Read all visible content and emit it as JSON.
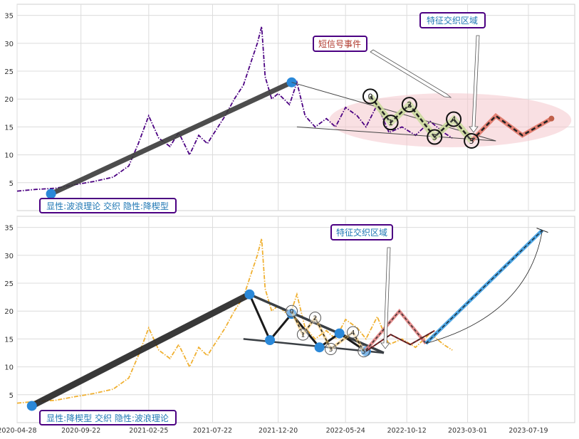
{
  "chart_data": [
    {
      "type": "line",
      "ylim": [
        0,
        37
      ],
      "yticks": [
        5,
        10,
        15,
        20,
        25,
        30,
        35
      ],
      "grid": true,
      "series": [
        {
          "role": "price",
          "color": "#4b0082",
          "dash": "dash-dot",
          "points": [
            [
              "2020-04-28",
              3.5
            ],
            [
              "2020-06-10",
              3.8
            ],
            [
              "2020-07-25",
              4.0
            ],
            [
              "2020-09-05",
              4.6
            ],
            [
              "2020-10-20",
              5.2
            ],
            [
              "2020-12-05",
              6.0
            ],
            [
              "2021-01-10",
              8.0
            ],
            [
              "2021-02-01",
              12.0
            ],
            [
              "2021-02-25",
              17.0
            ],
            [
              "2021-03-20",
              13.0
            ],
            [
              "2021-04-15",
              11.5
            ],
            [
              "2021-05-05",
              14.0
            ],
            [
              "2021-05-30",
              10.0
            ],
            [
              "2021-06-20",
              13.5
            ],
            [
              "2021-07-10",
              12.0
            ],
            [
              "2021-07-22",
              13.5
            ],
            [
              "2021-08-20",
              17.0
            ],
            [
              "2021-09-10",
              20.0
            ],
            [
              "2021-10-01",
              22.5
            ],
            [
              "2021-10-20",
              27.0
            ],
            [
              "2021-11-02",
              30.0
            ],
            [
              "2021-11-12",
              33.0
            ],
            [
              "2021-11-20",
              24.0
            ],
            [
              "2021-12-05",
              20.0
            ],
            [
              "2021-12-20",
              21.0
            ],
            [
              "2022-01-15",
              19.0
            ],
            [
              "2022-02-01",
              23.0
            ],
            [
              "2022-02-20",
              17.0
            ],
            [
              "2022-03-15",
              15.0
            ],
            [
              "2022-04-10",
              16.5
            ],
            [
              "2022-05-01",
              15.0
            ],
            [
              "2022-05-24",
              18.5
            ],
            [
              "2022-06-20",
              17.0
            ],
            [
              "2022-07-10",
              15.0
            ],
            [
              "2022-08-05",
              19.0
            ],
            [
              "2022-09-01",
              14.0
            ],
            [
              "2022-10-01",
              15.0
            ],
            [
              "2022-11-01",
              13.5
            ],
            [
              "2022-12-05",
              16.0
            ],
            [
              "2023-01-05",
              14.0
            ],
            [
              "2023-01-25",
              13.0
            ]
          ]
        }
      ],
      "waves": {
        "trend_start": [
          "2020-07-15",
          3.0
        ],
        "trend_peak": [
          "2022-01-20",
          23.0
        ],
        "numbered": [
          {
            "label": "0",
            "x": "2022-07-20",
            "y": 20.5
          },
          {
            "label": "1",
            "x": "2022-09-05",
            "y": 15.8
          },
          {
            "label": "2",
            "x": "2022-10-18",
            "y": 19.0
          },
          {
            "label": "3",
            "x": "2022-12-15",
            "y": 13.2
          },
          {
            "label": "4",
            "x": "2023-01-28",
            "y": 16.4
          },
          {
            "label": "5",
            "x": "2023-03-10",
            "y": 12.5
          }
        ],
        "projection": [
          [
            "2023-03-10",
            12.5
          ],
          [
            "2023-05-05",
            17.0
          ],
          [
            "2023-07-05",
            13.5
          ],
          [
            "2023-09-10",
            16.5
          ]
        ]
      },
      "annotations": [
        {
          "text": "短信号事件",
          "color": "#b03a2e"
        },
        {
          "text": "特征交织区域",
          "color": "#1f77b4"
        },
        {
          "text": "显性:波浪理论 交织 隐性:降楔型",
          "color": "#1f77b4"
        }
      ]
    },
    {
      "type": "line",
      "ylim": [
        0,
        37
      ],
      "yticks": [
        5,
        10,
        15,
        20,
        25,
        30,
        35
      ],
      "xticks": [
        "2020-04-28",
        "2020-09-22",
        "2021-02-25",
        "2021-07-22",
        "2021-12-20",
        "2022-05-24",
        "2022-10-12",
        "2023-03-01",
        "2023-07-19"
      ],
      "grid": true,
      "series": [
        {
          "role": "price",
          "color": "#f0b030",
          "dash": "dash-dot",
          "points": [
            [
              "2020-04-28",
              3.5
            ],
            [
              "2020-06-10",
              3.8
            ],
            [
              "2020-07-25",
              4.0
            ],
            [
              "2020-09-05",
              4.6
            ],
            [
              "2020-10-20",
              5.2
            ],
            [
              "2020-12-05",
              6.0
            ],
            [
              "2021-01-10",
              8.0
            ],
            [
              "2021-02-01",
              12.0
            ],
            [
              "2021-02-25",
              17.0
            ],
            [
              "2021-03-20",
              13.0
            ],
            [
              "2021-04-15",
              11.5
            ],
            [
              "2021-05-05",
              14.0
            ],
            [
              "2021-05-30",
              10.0
            ],
            [
              "2021-06-20",
              13.5
            ],
            [
              "2021-07-10",
              12.0
            ],
            [
              "2021-07-22",
              13.5
            ],
            [
              "2021-08-20",
              17.0
            ],
            [
              "2021-09-10",
              20.0
            ],
            [
              "2021-10-01",
              22.5
            ],
            [
              "2021-10-20",
              27.0
            ],
            [
              "2021-11-02",
              30.0
            ],
            [
              "2021-11-12",
              33.0
            ],
            [
              "2021-11-20",
              24.0
            ],
            [
              "2021-12-05",
              20.0
            ],
            [
              "2021-12-20",
              21.0
            ],
            [
              "2022-01-15",
              19.0
            ],
            [
              "2022-02-01",
              23.0
            ],
            [
              "2022-02-20",
              17.0
            ],
            [
              "2022-03-15",
              15.0
            ],
            [
              "2022-04-10",
              16.5
            ],
            [
              "2022-05-01",
              15.0
            ],
            [
              "2022-05-24",
              18.5
            ],
            [
              "2022-06-20",
              17.0
            ],
            [
              "2022-07-10",
              15.0
            ],
            [
              "2022-08-05",
              19.0
            ],
            [
              "2022-09-01",
              14.0
            ],
            [
              "2022-10-01",
              15.0
            ],
            [
              "2022-11-01",
              13.5
            ],
            [
              "2022-12-05",
              16.0
            ],
            [
              "2023-01-05",
              14.0
            ],
            [
              "2023-01-25",
              13.0
            ]
          ]
        }
      ],
      "wedge": {
        "start": [
          "2020-06-01",
          3.0
        ],
        "peak": [
          "2021-10-15",
          23.0
        ],
        "zigzag": [
          [
            "2021-10-15",
            23.0
          ],
          [
            "2021-12-01",
            14.8
          ],
          [
            "2022-01-20",
            19.5
          ],
          [
            "2022-03-25",
            13.5
          ],
          [
            "2022-05-10",
            16.0
          ],
          [
            "2022-07-10",
            12.8
          ]
        ],
        "upper_line": [
          [
            "2021-10-15",
            23.0
          ],
          [
            "2022-08-20",
            12.5
          ]
        ],
        "lower_line": [
          [
            "2021-10-01",
            15.0
          ],
          [
            "2022-08-20",
            12.5
          ]
        ],
        "numbered": [
          {
            "label": "0",
            "x": "2022-01-20",
            "y": 20.0
          },
          {
            "label": "1",
            "x": "2022-02-15",
            "y": 15.8
          },
          {
            "label": "2",
            "x": "2022-03-15",
            "y": 18.8
          },
          {
            "label": "3",
            "x": "2022-04-20",
            "y": 13.2
          },
          {
            "label": "4",
            "x": "2022-06-10",
            "y": 16.2
          },
          {
            "label": "5",
            "x": "2022-07-05",
            "y": 12.8
          }
        ],
        "red_zigzag": [
          [
            "2022-07-10",
            13.0
          ],
          [
            "2022-09-25",
            20.0
          ],
          [
            "2022-11-25",
            14.2
          ]
        ],
        "dark_zigzag": [
          [
            "2022-07-10",
            12.8
          ],
          [
            "2022-09-05",
            15.8
          ],
          [
            "2022-10-20",
            14.0
          ],
          [
            "2022-12-15",
            16.5
          ]
        ],
        "breakout": [
          [
            "2022-11-25",
            14.2
          ],
          [
            "2023-08-20",
            34.5
          ]
        ]
      },
      "annotations": [
        {
          "text": "特征交织区域",
          "color": "#1f77b4"
        },
        {
          "text": "显性:降楔型 交织 隐性:波浪理论",
          "color": "#1f77b4"
        }
      ]
    }
  ]
}
